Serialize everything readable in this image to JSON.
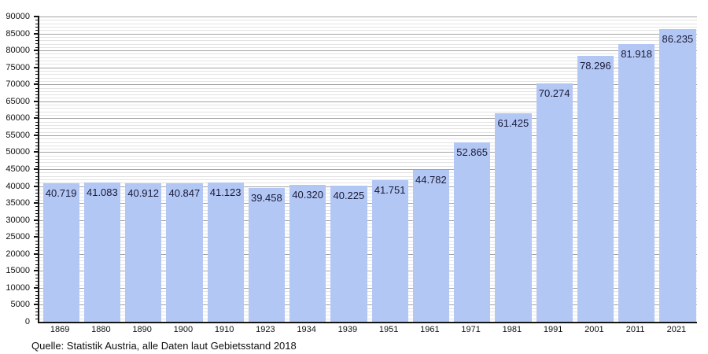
{
  "chart_data": {
    "type": "bar",
    "title": "",
    "xlabel": "",
    "ylabel": "",
    "categories": [
      "1869",
      "1880",
      "1890",
      "1900",
      "1910",
      "1923",
      "1934",
      "1939",
      "1951",
      "1961",
      "1971",
      "1981",
      "1991",
      "2001",
      "2011",
      "2021"
    ],
    "values": [
      40719,
      41083,
      40912,
      40847,
      41123,
      39458,
      40320,
      40225,
      41751,
      44782,
      52865,
      61425,
      70274,
      78296,
      81918,
      86235
    ],
    "value_labels": [
      "40.719",
      "41.083",
      "40.912",
      "40.847",
      "41.123",
      "39.458",
      "40.320",
      "40.225",
      "41.751",
      "44.782",
      "52.865",
      "61.425",
      "70.274",
      "78.296",
      "81.918",
      "86.235"
    ],
    "ylim": [
      0,
      90000
    ],
    "ytick_major": 5000,
    "ytick_minor": 1000,
    "ytick_labels": [
      "0",
      "5000",
      "10000",
      "15000",
      "20000",
      "25000",
      "30000",
      "35000",
      "40000",
      "45000",
      "50000",
      "55000",
      "60000",
      "65000",
      "70000",
      "75000",
      "80000",
      "85000",
      "90000"
    ],
    "grid": "horizontal, minor every 1000, major every 5000",
    "legend": "none",
    "source": "Quelle: Statistik Austria, alle Daten laut Gebietsstand 2018",
    "colors": {
      "bar": "#b3c7f5",
      "value_text": "#1a1a35",
      "grid_major": "#a3a3a3",
      "grid_minor": "#e3e3e3",
      "axis": "#141414",
      "tick_text": "#111111"
    }
  }
}
